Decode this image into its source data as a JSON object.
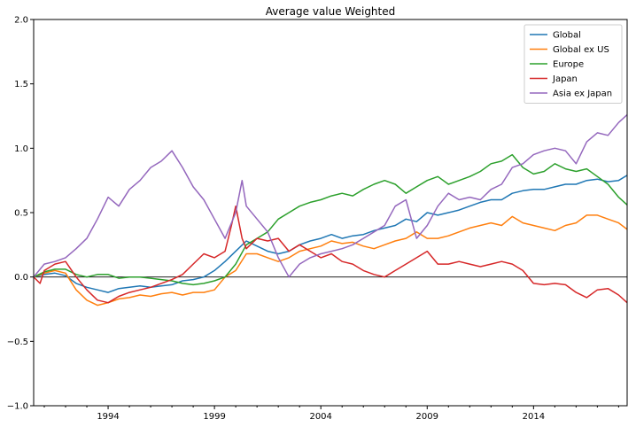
{
  "chart_data": {
    "type": "line",
    "title": "Average value Weighted",
    "xlabel": "",
    "ylabel": "",
    "xlim": [
      1990.5,
      2018.4
    ],
    "ylim": [
      -1.0,
      2.0
    ],
    "x_ticks": [
      1994,
      1999,
      2004,
      2009,
      2014
    ],
    "x_tick_labels": [
      "1994",
      "1999",
      "2004",
      "2009",
      "2014"
    ],
    "y_ticks": [
      -1.0,
      -0.5,
      0.0,
      0.5,
      1.0,
      1.5,
      2.0
    ],
    "y_tick_labels": [
      "−1.0",
      "−0.5",
      "0.0",
      "0.5",
      "1.0",
      "1.5",
      "2.0"
    ],
    "zero_line": true,
    "grid": false,
    "legend_position": "top-right",
    "series": [
      {
        "name": "Global",
        "color": "#1f77b4",
        "points": [
          [
            1990.5,
            0.0
          ],
          [
            1991.0,
            0.02
          ],
          [
            1991.5,
            0.03
          ],
          [
            1992.0,
            0.01
          ],
          [
            1992.5,
            -0.05
          ],
          [
            1993.0,
            -0.08
          ],
          [
            1993.5,
            -0.1
          ],
          [
            1994.0,
            -0.12
          ],
          [
            1994.5,
            -0.09
          ],
          [
            1995.0,
            -0.08
          ],
          [
            1995.5,
            -0.07
          ],
          [
            1996.0,
            -0.08
          ],
          [
            1996.5,
            -0.07
          ],
          [
            1997.0,
            -0.06
          ],
          [
            1997.5,
            -0.03
          ],
          [
            1998.0,
            -0.02
          ],
          [
            1998.5,
            0.0
          ],
          [
            1999.0,
            0.05
          ],
          [
            1999.5,
            0.12
          ],
          [
            2000.0,
            0.2
          ],
          [
            2000.5,
            0.28
          ],
          [
            2001.0,
            0.24
          ],
          [
            2001.5,
            0.2
          ],
          [
            2002.0,
            0.18
          ],
          [
            2002.5,
            0.2
          ],
          [
            2003.0,
            0.25
          ],
          [
            2003.5,
            0.28
          ],
          [
            2004.0,
            0.3
          ],
          [
            2004.5,
            0.33
          ],
          [
            2005.0,
            0.3
          ],
          [
            2005.5,
            0.32
          ],
          [
            2006.0,
            0.33
          ],
          [
            2006.5,
            0.36
          ],
          [
            2007.0,
            0.38
          ],
          [
            2007.5,
            0.4
          ],
          [
            2008.0,
            0.45
          ],
          [
            2008.5,
            0.43
          ],
          [
            2009.0,
            0.5
          ],
          [
            2009.5,
            0.48
          ],
          [
            2010.0,
            0.5
          ],
          [
            2010.5,
            0.52
          ],
          [
            2011.0,
            0.55
          ],
          [
            2011.5,
            0.58
          ],
          [
            2012.0,
            0.6
          ],
          [
            2012.5,
            0.6
          ],
          [
            2013.0,
            0.65
          ],
          [
            2013.5,
            0.67
          ],
          [
            2014.0,
            0.68
          ],
          [
            2014.5,
            0.68
          ],
          [
            2015.0,
            0.7
          ],
          [
            2015.5,
            0.72
          ],
          [
            2016.0,
            0.72
          ],
          [
            2016.5,
            0.75
          ],
          [
            2017.0,
            0.76
          ],
          [
            2017.5,
            0.74
          ],
          [
            2018.0,
            0.75
          ],
          [
            2018.4,
            0.79
          ]
        ]
      },
      {
        "name": "Global ex US",
        "color": "#ff7f0e",
        "points": [
          [
            1990.5,
            0.0
          ],
          [
            1991.0,
            0.03
          ],
          [
            1991.5,
            0.05
          ],
          [
            1992.0,
            0.03
          ],
          [
            1992.5,
            -0.1
          ],
          [
            1993.0,
            -0.18
          ],
          [
            1993.5,
            -0.22
          ],
          [
            1994.0,
            -0.2
          ],
          [
            1994.5,
            -0.17
          ],
          [
            1995.0,
            -0.16
          ],
          [
            1995.5,
            -0.14
          ],
          [
            1996.0,
            -0.15
          ],
          [
            1996.5,
            -0.13
          ],
          [
            1997.0,
            -0.12
          ],
          [
            1997.5,
            -0.14
          ],
          [
            1998.0,
            -0.12
          ],
          [
            1998.5,
            -0.12
          ],
          [
            1999.0,
            -0.1
          ],
          [
            1999.5,
            0.0
          ],
          [
            2000.0,
            0.05
          ],
          [
            2000.5,
            0.18
          ],
          [
            2001.0,
            0.18
          ],
          [
            2001.5,
            0.15
          ],
          [
            2002.0,
            0.12
          ],
          [
            2002.5,
            0.15
          ],
          [
            2003.0,
            0.2
          ],
          [
            2003.5,
            0.22
          ],
          [
            2004.0,
            0.24
          ],
          [
            2004.5,
            0.28
          ],
          [
            2005.0,
            0.26
          ],
          [
            2005.5,
            0.27
          ],
          [
            2006.0,
            0.24
          ],
          [
            2006.5,
            0.22
          ],
          [
            2007.0,
            0.25
          ],
          [
            2007.5,
            0.28
          ],
          [
            2008.0,
            0.3
          ],
          [
            2008.5,
            0.35
          ],
          [
            2009.0,
            0.3
          ],
          [
            2009.5,
            0.3
          ],
          [
            2010.0,
            0.32
          ],
          [
            2010.5,
            0.35
          ],
          [
            2011.0,
            0.38
          ],
          [
            2011.5,
            0.4
          ],
          [
            2012.0,
            0.42
          ],
          [
            2012.5,
            0.4
          ],
          [
            2013.0,
            0.47
          ],
          [
            2013.5,
            0.42
          ],
          [
            2014.0,
            0.4
          ],
          [
            2014.5,
            0.38
          ],
          [
            2015.0,
            0.36
          ],
          [
            2015.5,
            0.4
          ],
          [
            2016.0,
            0.42
          ],
          [
            2016.5,
            0.48
          ],
          [
            2017.0,
            0.48
          ],
          [
            2017.5,
            0.45
          ],
          [
            2018.0,
            0.42
          ],
          [
            2018.4,
            0.37
          ]
        ]
      },
      {
        "name": "Europe",
        "color": "#2ca02c",
        "points": [
          [
            1990.5,
            0.0
          ],
          [
            1991.0,
            0.04
          ],
          [
            1991.5,
            0.06
          ],
          [
            1992.0,
            0.06
          ],
          [
            1992.5,
            0.02
          ],
          [
            1993.0,
            0.0
          ],
          [
            1993.5,
            0.02
          ],
          [
            1994.0,
            0.02
          ],
          [
            1994.5,
            -0.01
          ],
          [
            1995.0,
            0.0
          ],
          [
            1995.5,
            0.0
          ],
          [
            1996.0,
            -0.01
          ],
          [
            1996.5,
            -0.02
          ],
          [
            1997.0,
            -0.03
          ],
          [
            1997.5,
            -0.05
          ],
          [
            1998.0,
            -0.06
          ],
          [
            1998.5,
            -0.05
          ],
          [
            1999.0,
            -0.03
          ],
          [
            1999.5,
            0.0
          ],
          [
            2000.0,
            0.1
          ],
          [
            2000.5,
            0.25
          ],
          [
            2001.0,
            0.3
          ],
          [
            2001.5,
            0.35
          ],
          [
            2002.0,
            0.45
          ],
          [
            2002.5,
            0.5
          ],
          [
            2003.0,
            0.55
          ],
          [
            2003.5,
            0.58
          ],
          [
            2004.0,
            0.6
          ],
          [
            2004.5,
            0.63
          ],
          [
            2005.0,
            0.65
          ],
          [
            2005.5,
            0.63
          ],
          [
            2006.0,
            0.68
          ],
          [
            2006.5,
            0.72
          ],
          [
            2007.0,
            0.75
          ],
          [
            2007.5,
            0.72
          ],
          [
            2008.0,
            0.65
          ],
          [
            2008.5,
            0.7
          ],
          [
            2009.0,
            0.75
          ],
          [
            2009.5,
            0.78
          ],
          [
            2010.0,
            0.72
          ],
          [
            2010.5,
            0.75
          ],
          [
            2011.0,
            0.78
          ],
          [
            2011.5,
            0.82
          ],
          [
            2012.0,
            0.88
          ],
          [
            2012.5,
            0.9
          ],
          [
            2013.0,
            0.95
          ],
          [
            2013.5,
            0.85
          ],
          [
            2014.0,
            0.8
          ],
          [
            2014.5,
            0.82
          ],
          [
            2015.0,
            0.88
          ],
          [
            2015.5,
            0.84
          ],
          [
            2016.0,
            0.82
          ],
          [
            2016.5,
            0.84
          ],
          [
            2017.0,
            0.78
          ],
          [
            2017.5,
            0.72
          ],
          [
            2018.0,
            0.62
          ],
          [
            2018.4,
            0.56
          ]
        ]
      },
      {
        "name": "Japan",
        "color": "#d62728",
        "points": [
          [
            1990.5,
            0.0
          ],
          [
            1990.8,
            -0.05
          ],
          [
            1991.0,
            0.05
          ],
          [
            1991.5,
            0.1
          ],
          [
            1992.0,
            0.12
          ],
          [
            1992.5,
            0.0
          ],
          [
            1993.0,
            -0.1
          ],
          [
            1993.5,
            -0.18
          ],
          [
            1994.0,
            -0.2
          ],
          [
            1994.5,
            -0.15
          ],
          [
            1995.0,
            -0.12
          ],
          [
            1995.5,
            -0.1
          ],
          [
            1996.0,
            -0.08
          ],
          [
            1996.5,
            -0.05
          ],
          [
            1997.0,
            -0.02
          ],
          [
            1997.5,
            0.02
          ],
          [
            1998.0,
            0.1
          ],
          [
            1998.5,
            0.18
          ],
          [
            1999.0,
            0.15
          ],
          [
            1999.5,
            0.2
          ],
          [
            1999.8,
            0.4
          ],
          [
            2000.0,
            0.55
          ],
          [
            2000.3,
            0.3
          ],
          [
            2000.5,
            0.22
          ],
          [
            2001.0,
            0.3
          ],
          [
            2001.5,
            0.28
          ],
          [
            2002.0,
            0.3
          ],
          [
            2002.5,
            0.2
          ],
          [
            2003.0,
            0.25
          ],
          [
            2003.5,
            0.2
          ],
          [
            2004.0,
            0.15
          ],
          [
            2004.5,
            0.18
          ],
          [
            2005.0,
            0.12
          ],
          [
            2005.5,
            0.1
          ],
          [
            2006.0,
            0.05
          ],
          [
            2006.5,
            0.02
          ],
          [
            2007.0,
            0.0
          ],
          [
            2007.5,
            0.05
          ],
          [
            2008.0,
            0.1
          ],
          [
            2008.5,
            0.15
          ],
          [
            2009.0,
            0.2
          ],
          [
            2009.5,
            0.1
          ],
          [
            2010.0,
            0.1
          ],
          [
            2010.5,
            0.12
          ],
          [
            2011.0,
            0.1
          ],
          [
            2011.5,
            0.08
          ],
          [
            2012.0,
            0.1
          ],
          [
            2012.5,
            0.12
          ],
          [
            2013.0,
            0.1
          ],
          [
            2013.5,
            0.05
          ],
          [
            2014.0,
            -0.05
          ],
          [
            2014.5,
            -0.06
          ],
          [
            2015.0,
            -0.05
          ],
          [
            2015.5,
            -0.06
          ],
          [
            2016.0,
            -0.12
          ],
          [
            2016.5,
            -0.16
          ],
          [
            2017.0,
            -0.1
          ],
          [
            2017.5,
            -0.09
          ],
          [
            2018.0,
            -0.14
          ],
          [
            2018.4,
            -0.2
          ]
        ]
      },
      {
        "name": "Asia ex Japan",
        "color": "#9467bd",
        "points": [
          [
            1990.5,
            0.0
          ],
          [
            1991.0,
            0.1
          ],
          [
            1991.5,
            0.12
          ],
          [
            1992.0,
            0.15
          ],
          [
            1992.5,
            0.22
          ],
          [
            1993.0,
            0.3
          ],
          [
            1993.5,
            0.45
          ],
          [
            1994.0,
            0.62
          ],
          [
            1994.5,
            0.55
          ],
          [
            1995.0,
            0.68
          ],
          [
            1995.5,
            0.75
          ],
          [
            1996.0,
            0.85
          ],
          [
            1996.5,
            0.9
          ],
          [
            1997.0,
            0.98
          ],
          [
            1997.5,
            0.85
          ],
          [
            1998.0,
            0.7
          ],
          [
            1998.5,
            0.6
          ],
          [
            1999.0,
            0.45
          ],
          [
            1999.5,
            0.3
          ],
          [
            2000.0,
            0.5
          ],
          [
            2000.3,
            0.75
          ],
          [
            2000.5,
            0.55
          ],
          [
            2001.0,
            0.45
          ],
          [
            2001.5,
            0.35
          ],
          [
            2002.0,
            0.15
          ],
          [
            2002.5,
            0.0
          ],
          [
            2003.0,
            0.1
          ],
          [
            2003.5,
            0.15
          ],
          [
            2004.0,
            0.18
          ],
          [
            2004.5,
            0.2
          ],
          [
            2005.0,
            0.22
          ],
          [
            2005.5,
            0.25
          ],
          [
            2006.0,
            0.3
          ],
          [
            2006.5,
            0.35
          ],
          [
            2007.0,
            0.4
          ],
          [
            2007.5,
            0.55
          ],
          [
            2008.0,
            0.6
          ],
          [
            2008.5,
            0.3
          ],
          [
            2009.0,
            0.4
          ],
          [
            2009.5,
            0.55
          ],
          [
            2010.0,
            0.65
          ],
          [
            2010.5,
            0.6
          ],
          [
            2011.0,
            0.62
          ],
          [
            2011.5,
            0.6
          ],
          [
            2012.0,
            0.68
          ],
          [
            2012.5,
            0.72
          ],
          [
            2013.0,
            0.85
          ],
          [
            2013.5,
            0.88
          ],
          [
            2014.0,
            0.95
          ],
          [
            2014.5,
            0.98
          ],
          [
            2015.0,
            1.0
          ],
          [
            2015.5,
            0.98
          ],
          [
            2016.0,
            0.88
          ],
          [
            2016.5,
            1.05
          ],
          [
            2017.0,
            1.12
          ],
          [
            2017.5,
            1.1
          ],
          [
            2018.0,
            1.2
          ],
          [
            2018.4,
            1.26
          ]
        ]
      }
    ]
  }
}
